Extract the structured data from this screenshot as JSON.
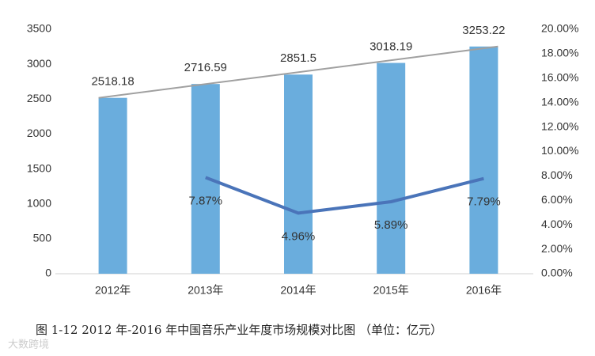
{
  "chart_data": {
    "type": "bar_line",
    "title": "图 1-12 2012 年-2016 年中国音乐产业年度市场规模对比图 （单位：亿元）",
    "watermark": "大数跨境",
    "categories": [
      "2012年",
      "2013年",
      "2014年",
      "2015年",
      "2016年"
    ],
    "series": [
      {
        "type": "bar",
        "color": "#6aaddd",
        "values": [
          2518.18,
          2716.59,
          2851.5,
          3018.19,
          3253.22
        ]
      },
      {
        "type": "line",
        "axis": "y2",
        "color": "#4a74b9",
        "values": [
          null,
          7.87,
          4.96,
          5.89,
          7.79
        ],
        "value_labels": [
          null,
          "7.87%",
          "4.96%",
          "5.89%",
          "7.79%"
        ]
      }
    ],
    "trend_color": "#a0a0a0",
    "ylim": [
      0,
      3500
    ],
    "yticks": [
      0,
      500,
      1000,
      1500,
      2000,
      2500,
      3000,
      3500
    ],
    "y2lim": [
      0,
      20
    ],
    "y2ticks": [
      {
        "value": 0,
        "label": "0.00%"
      },
      {
        "value": 2,
        "label": "2.00%"
      },
      {
        "value": 4,
        "label": "4.00%"
      },
      {
        "value": 6,
        "label": "6.00%"
      },
      {
        "value": 8,
        "label": "8.00%"
      },
      {
        "value": 10,
        "label": "10.00%"
      },
      {
        "value": 12,
        "label": "12.00%"
      },
      {
        "value": 14,
        "label": "14.00%"
      },
      {
        "value": 16,
        "label": "16.00%"
      },
      {
        "value": 18,
        "label": "18.00%"
      },
      {
        "value": 20,
        "label": "20.00%"
      }
    ],
    "grid": false
  }
}
